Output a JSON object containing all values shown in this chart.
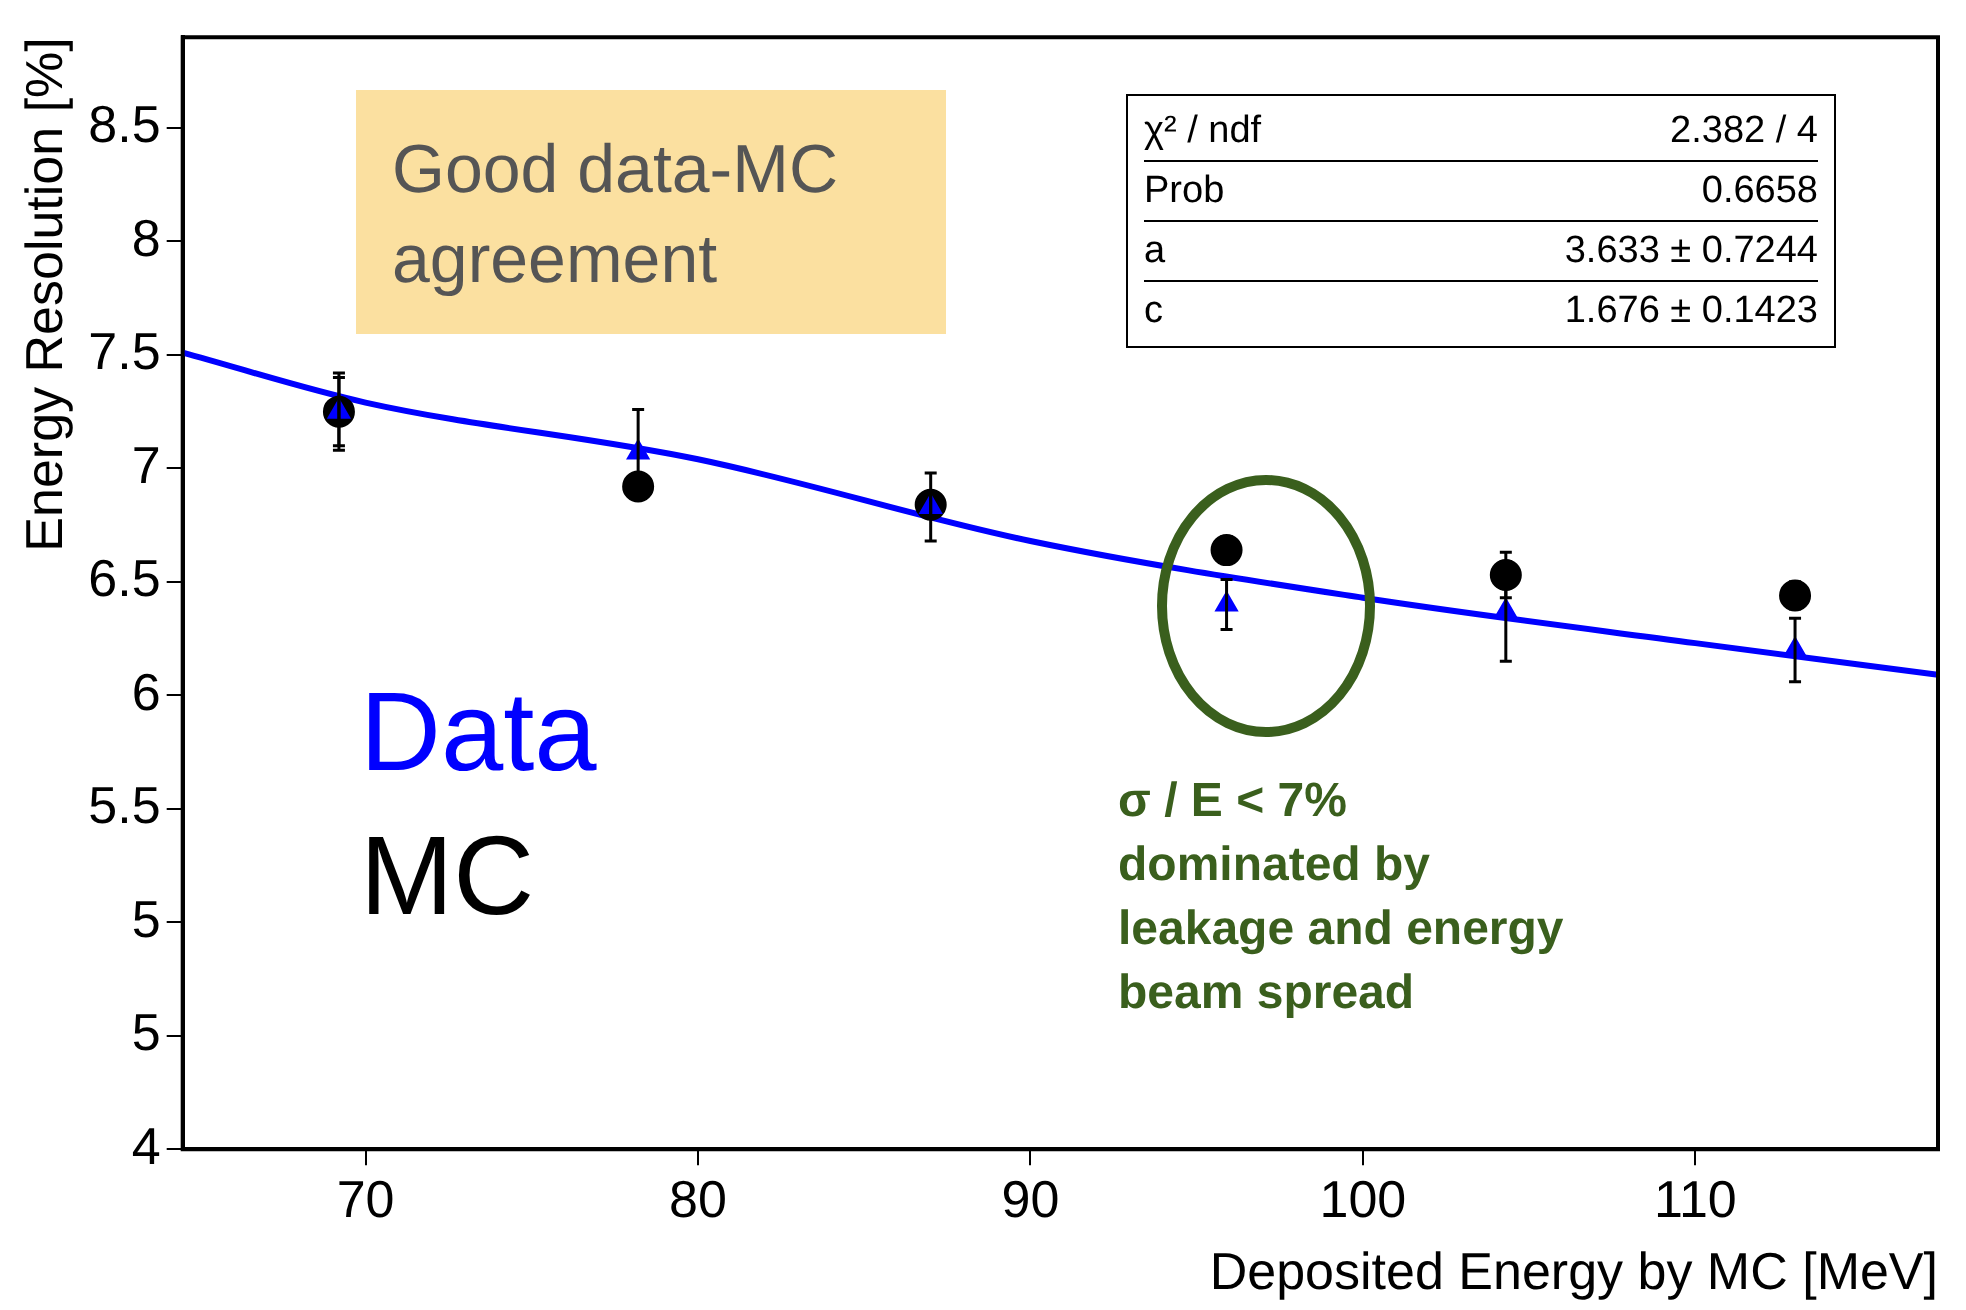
{
  "chart_data": {
    "type": "scatter",
    "xlabel": "Deposited Energy by MC [MeV]",
    "ylabel": "Energy Resolution [%]",
    "xlim": [
      64.5,
      117.3
    ],
    "xticks": [
      70,
      80,
      90,
      100,
      110
    ],
    "ylim": [
      4,
      8.9
    ],
    "yticks": [
      4,
      {
        "value": 4.5,
        "label": "5"
      },
      5,
      5.5,
      6,
      6.5,
      7,
      7.5,
      8,
      8.5
    ],
    "grid": false,
    "legend": "left",
    "series": [
      {
        "name": "Data",
        "color": "#0000ff",
        "marker": "triangle",
        "x": [
          69.2,
          78.2,
          87,
          95.9,
          104.3,
          113
        ],
        "values": [
          7.25,
          7.07,
          6.83,
          6.4,
          6.37,
          6.2
        ],
        "errors": [
          0.17,
          0.19,
          0.15,
          0.11,
          0.22,
          0.14
        ]
      },
      {
        "name": "MC",
        "color": "#000000",
        "marker": "circle",
        "x": [
          69.2,
          78.2,
          87,
          95.9,
          104.3,
          113
        ],
        "values": [
          7.25,
          6.92,
          6.84,
          6.64,
          6.53,
          6.44
        ],
        "errors": [
          0.15,
          0.05,
          0.05,
          0.06,
          0.1,
          0.06
        ]
      },
      {
        "type": "line",
        "color": "#0000ff",
        "marker": "none",
        "x": [
          64.5,
          70,
          80,
          90,
          100,
          110,
          117.3
        ],
        "values": [
          7.51,
          7.29,
          7.04,
          6.68,
          6.43,
          6.23,
          6.09
        ]
      }
    ],
    "annotations": [
      "Good data-MC agreement",
      "χ² / ndf",
      "2.382 / 4",
      "Prob",
      "0.6658",
      "a",
      "3.633 ± 0.7244",
      "c",
      "1.676 ± 0.1423",
      "σ / E < 7%\ndominated by\nleakage and energy\nbeam spread"
    ]
  }
}
